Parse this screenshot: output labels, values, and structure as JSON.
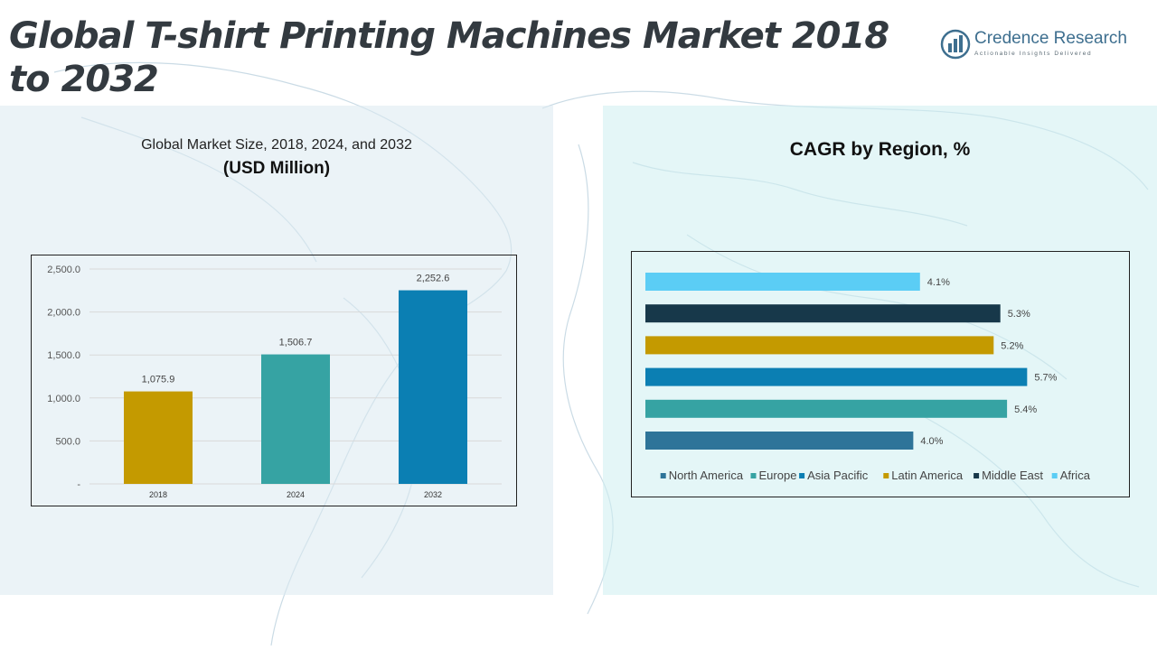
{
  "header": {
    "title": "Global T-shirt Printing Machines Market 2018 to 2032",
    "logo_name": "Credence Research",
    "logo_tagline": "Actionable Insights Delivered"
  },
  "chart_data": [
    {
      "type": "bar",
      "title": "Global Market Size, 2018, 2024, and 2032",
      "subtitle": "(USD Million)",
      "categories": [
        "2018",
        "2024",
        "2032"
      ],
      "values": [
        1075.9,
        1506.7,
        2252.6
      ],
      "data_labels": [
        "1,075.9",
        "1,506.7",
        "2,252.6"
      ],
      "colors": [
        "#c49a00",
        "#36a3a3",
        "#0b7fb3"
      ],
      "ylim": [
        0,
        2500
      ],
      "yticks": [
        0,
        500,
        1000,
        1500,
        2000,
        2500
      ],
      "ytick_labels": [
        "-",
        "500.0",
        "1,000.0",
        "1,500.0",
        "2,000.0",
        "2,500.0"
      ],
      "grid": true
    },
    {
      "type": "bar",
      "orientation": "horizontal",
      "title": "CAGR by Region, %",
      "categories": [
        "North America",
        "Europe",
        "Asia Pacific",
        "Latin America",
        "Middle East",
        "Africa"
      ],
      "values": [
        4.0,
        5.4,
        5.7,
        5.2,
        5.3,
        4.1
      ],
      "data_labels": [
        "4.0%",
        "5.4%",
        "5.7%",
        "5.2%",
        "5.3%",
        "4.1%"
      ],
      "colors": [
        "#2e7499",
        "#36a3a3",
        "#0b7fb3",
        "#c49a00",
        "#17384a",
        "#5bcdf5"
      ],
      "legend": "bottom",
      "grid": false
    }
  ]
}
